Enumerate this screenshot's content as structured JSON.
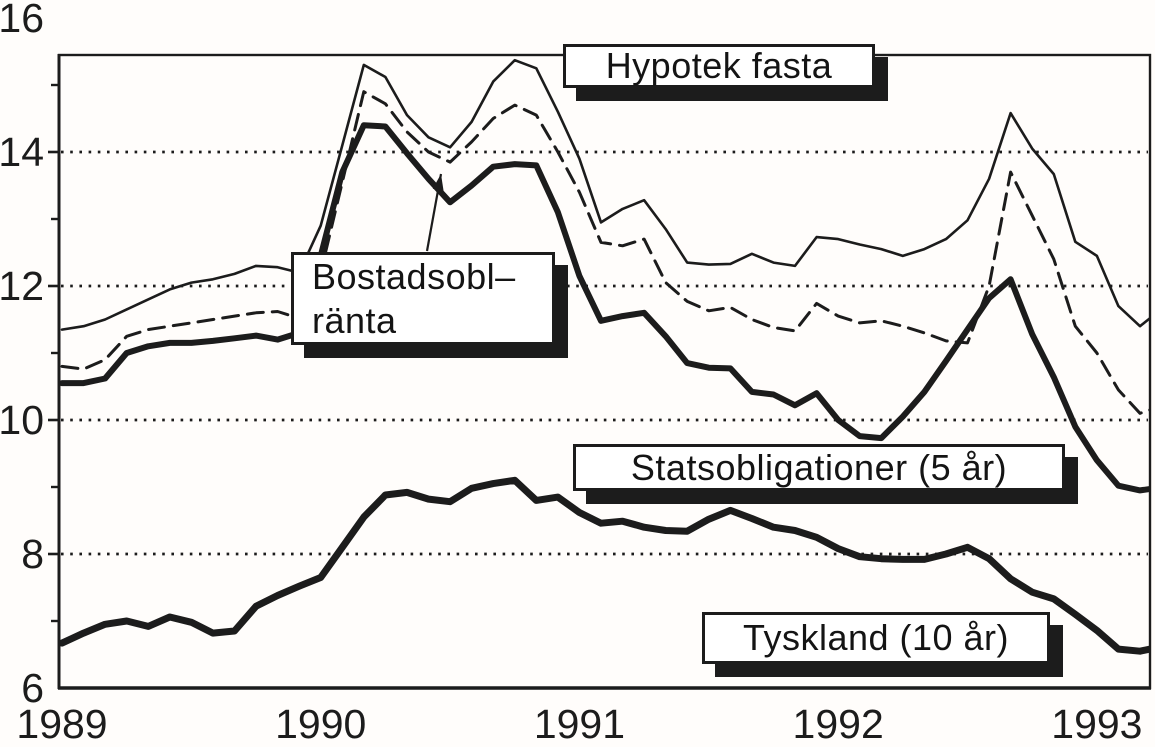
{
  "chart_data": {
    "type": "line",
    "title": "",
    "x_unit": "month",
    "x_start": "1989-01",
    "x_end": "1993-03",
    "x_tick_labels": [
      "1989",
      "1990",
      "1991",
      "1992",
      "1993"
    ],
    "ylim": [
      6,
      16
    ],
    "y_major_labels": [
      6,
      8,
      10,
      12,
      14,
      16
    ],
    "y_tick_marks_major": [
      8,
      10,
      12,
      14
    ],
    "y_minor_ticks": [
      7,
      9,
      11,
      13,
      15
    ],
    "gridlines_at": [
      8,
      10,
      12,
      14
    ],
    "grid_style": "dotted",
    "legend_position": "none (boxed annotations inside plot)",
    "background": "#fffdfb",
    "ink_color": "#1c1c1c",
    "series": [
      {
        "name": "Hypotek fasta",
        "style": "thin-solid",
        "values": [
          11.35,
          11.4,
          11.5,
          11.65,
          11.8,
          11.95,
          12.05,
          12.1,
          12.18,
          12.3,
          12.28,
          12.2,
          12.9,
          14.1,
          15.3,
          15.12,
          14.55,
          14.22,
          14.07,
          14.45,
          15.05,
          15.37,
          15.25,
          14.6,
          13.9,
          12.95,
          13.15,
          13.28,
          12.85,
          12.35,
          12.32,
          12.33,
          12.48,
          12.35,
          12.3,
          12.73,
          12.7,
          12.62,
          12.55,
          12.45,
          12.55,
          12.7,
          12.98,
          13.6,
          14.58,
          14.05,
          13.67,
          12.66,
          12.45,
          11.7,
          11.4
        ],
        "edge_value": 11.52
      },
      {
        "name": "Bostadsobl-ränta",
        "style": "dashed",
        "values": [
          10.8,
          10.76,
          10.9,
          11.25,
          11.35,
          11.4,
          11.45,
          11.5,
          11.55,
          11.6,
          11.62,
          11.52,
          12.2,
          13.55,
          14.9,
          14.72,
          14.3,
          14.0,
          13.85,
          14.15,
          14.5,
          14.7,
          14.55,
          14.0,
          13.4,
          12.65,
          12.6,
          12.7,
          12.05,
          11.77,
          11.63,
          11.68,
          11.5,
          11.38,
          11.33,
          11.74,
          11.55,
          11.45,
          11.48,
          11.4,
          11.3,
          11.18,
          11.15,
          12.0,
          13.7,
          13.05,
          12.4,
          11.4,
          11.0,
          10.45,
          10.1
        ],
        "edge_value": 10.15
      },
      {
        "name": "Statsobligationer (5 år)",
        "style": "thick-solid",
        "values": [
          10.55,
          10.55,
          10.62,
          11.0,
          11.1,
          11.15,
          11.15,
          11.18,
          11.22,
          11.26,
          11.2,
          11.3,
          12.45,
          13.7,
          14.4,
          14.38,
          13.98,
          13.6,
          13.25,
          13.5,
          13.78,
          13.82,
          13.8,
          13.1,
          12.15,
          11.48,
          11.55,
          11.6,
          11.25,
          10.85,
          10.78,
          10.77,
          10.42,
          10.38,
          10.22,
          10.4,
          10.0,
          9.76,
          9.73,
          10.05,
          10.42,
          10.88,
          11.35,
          11.82,
          12.1,
          11.28,
          10.64,
          9.9,
          9.4,
          9.02,
          8.95
        ],
        "edge_value": 8.97
      },
      {
        "name": "Tyskland (10 år)",
        "style": "extra-thick-solid",
        "values": [
          6.67,
          6.82,
          6.95,
          7.0,
          6.92,
          7.06,
          6.98,
          6.82,
          6.85,
          7.22,
          7.38,
          7.52,
          7.65,
          8.1,
          8.55,
          8.88,
          8.92,
          8.82,
          8.78,
          8.98,
          9.05,
          9.1,
          8.8,
          8.85,
          8.62,
          8.46,
          8.49,
          8.4,
          8.35,
          8.34,
          8.52,
          8.65,
          8.53,
          8.4,
          8.35,
          8.25,
          8.08,
          7.96,
          7.93,
          7.92,
          7.92,
          8.0,
          8.1,
          7.93,
          7.63,
          7.43,
          7.33,
          7.1,
          6.86,
          6.58,
          6.55
        ],
        "edge_value": 6.58
      }
    ],
    "annotations": [
      {
        "id": "hypotek",
        "label": "Hypotek fasta"
      },
      {
        "id": "bostadsobl",
        "label_line1": "Bostadsobl–",
        "label_line2": "ränta",
        "arrow": {
          "from": [
            427,
            251
          ],
          "to": [
            441,
            174
          ]
        }
      },
      {
        "id": "statsobl",
        "label": "Statsobligationer (5 år)"
      },
      {
        "id": "tyskland",
        "label": "Tyskland (10 år)"
      }
    ]
  }
}
